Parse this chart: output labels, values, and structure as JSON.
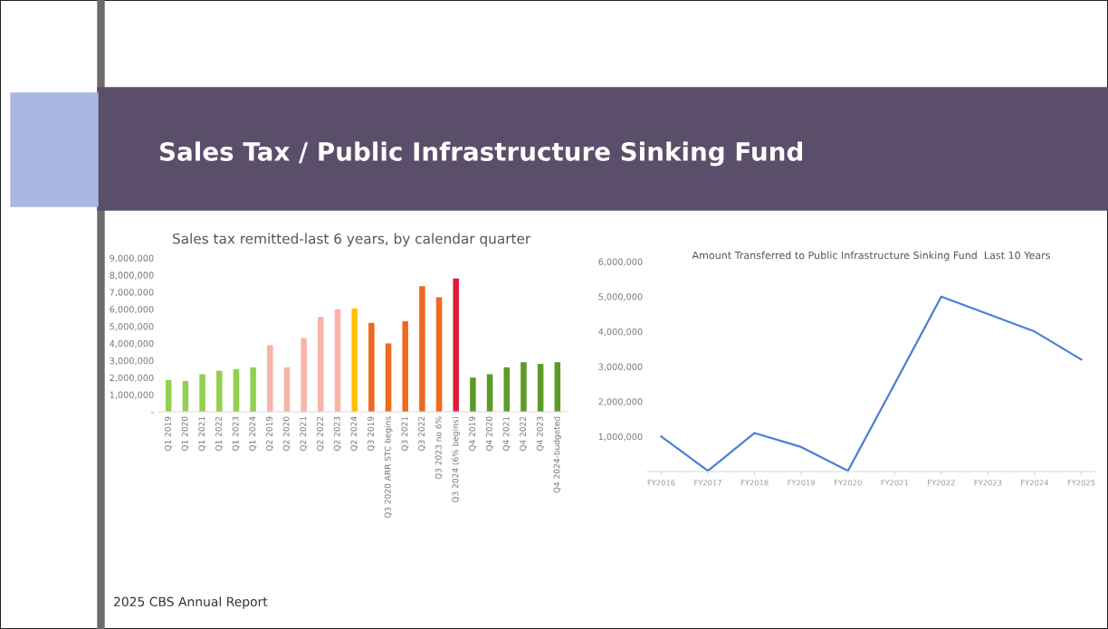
{
  "chart_data": [
    {
      "type": "bar",
      "title": "Sales tax remitted-last 6 years, by calendar quarter",
      "categories": [
        "Q1 2019",
        "Q1 2020",
        "Q1 2021",
        "Q1 2022",
        "Q1 2023",
        "Q1 2024",
        "Q2 2019",
        "Q2 2020",
        "Q2 2021",
        "Q2 2022",
        "Q2 2023",
        "Q2 2024",
        "Q3 2019",
        "Q3 2020 ARR STC begins",
        "Q3 2021",
        "Q3 2022",
        "Q3 2023 no 6%",
        "Q3 2024 (6% begins)",
        "Q4 2019",
        "Q4 2020",
        "Q4 2021",
        "Q4 2022",
        "Q4 2023",
        "Q4 2024-budgeted"
      ],
      "values": [
        1850000,
        1800000,
        2200000,
        2400000,
        2500000,
        2600000,
        3900000,
        2600000,
        4300000,
        5550000,
        6000000,
        6050000,
        5200000,
        4000000,
        5300000,
        7350000,
        6700000,
        7800000,
        2000000,
        2200000,
        2600000,
        2900000,
        2800000,
        2900000
      ],
      "colors": [
        "#92d050",
        "#92d050",
        "#92d050",
        "#92d050",
        "#92d050",
        "#92d050",
        "#f8b4a8",
        "#f8b4a8",
        "#f8b4a8",
        "#f8b4a8",
        "#f8b4a8",
        "#ffc000",
        "#ed6a1f",
        "#ed6a1f",
        "#ed6a1f",
        "#ed6a1f",
        "#ed6a1f",
        "#dc1e3c",
        "#5b9b2a",
        "#5b9b2a",
        "#5b9b2a",
        "#5b9b2a",
        "#5b9b2a",
        "#5b9b2a"
      ],
      "ylim": [
        0,
        9000000
      ],
      "yticks": [
        {
          "value": 0,
          "label": "-"
        },
        {
          "value": 1000000,
          "label": "1,000,000"
        },
        {
          "value": 2000000,
          "label": "2,000,000"
        },
        {
          "value": 3000000,
          "label": "3,000,000"
        },
        {
          "value": 4000000,
          "label": "4,000,000"
        },
        {
          "value": 5000000,
          "label": "5,000,000"
        },
        {
          "value": 6000000,
          "label": "6,000,000"
        },
        {
          "value": 7000000,
          "label": "7,000,000"
        },
        {
          "value": 8000000,
          "label": "8,000,000"
        },
        {
          "value": 9000000,
          "label": "9,000,000"
        }
      ],
      "grid": false,
      "legend": false,
      "annotations": [
        "Sales Tax / Public Infrastructure Sinking Fund",
        "2025 CBS Annual Report"
      ]
    },
    {
      "type": "line",
      "title": "Amount Transferred to Public Infrastructure Sinking Fund  Last 10 Years",
      "categories": [
        "FY2016",
        "FY2017",
        "FY2018",
        "FY2019",
        "FY2020",
        "FY2021",
        "FY2022",
        "FY2023",
        "FY2024",
        "FY2025"
      ],
      "series": [
        {
          "color": "#4a7fd4",
          "values": [
            1000000,
            20000,
            1100000,
            700000,
            20000,
            2500000,
            5000000,
            4500000,
            4000000,
            3200000
          ]
        }
      ],
      "ylim": [
        0,
        6000000
      ],
      "yticks": [
        {
          "value": 1000000,
          "label": "1,000,000"
        },
        {
          "value": 2000000,
          "label": "2,000,000"
        },
        {
          "value": 3000000,
          "label": "3,000,000"
        },
        {
          "value": 4000000,
          "label": "4,000,000"
        },
        {
          "value": 5000000,
          "label": "5,000,000"
        },
        {
          "value": 6000000,
          "label": "6,000,000"
        }
      ],
      "grid": false,
      "legend": false,
      "marker": "none",
      "line_style": "solid"
    }
  ]
}
